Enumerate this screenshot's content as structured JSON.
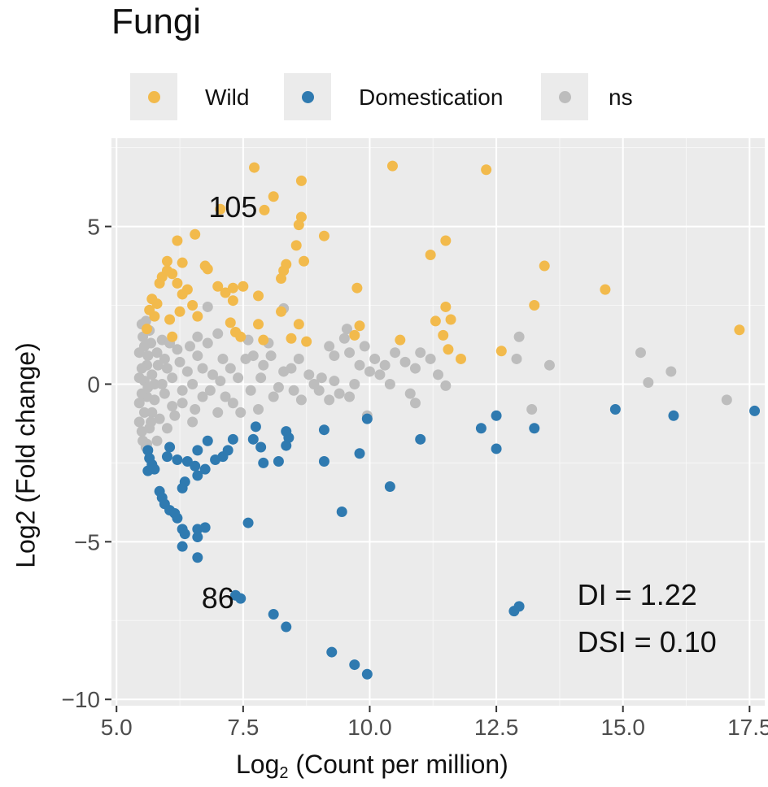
{
  "chart_data": {
    "type": "scatter",
    "title": "Fungi",
    "xlabel_prefix": "Log",
    "xlabel_sub": "2",
    "xlabel_suffix": " (Count per million)",
    "ylabel": "Log2 (Fold change)",
    "xlim": [
      4.9,
      17.8
    ],
    "ylim": [
      -10.2,
      7.8
    ],
    "x_ticks": [
      5.0,
      7.5,
      10.0,
      12.5,
      15.0,
      17.5
    ],
    "x_tick_labels": [
      "5.0",
      "7.5",
      "10.0",
      "12.5",
      "15.0",
      "17.5"
    ],
    "y_ticks": [
      -10,
      -5,
      0,
      5
    ],
    "y_tick_labels": [
      "−10",
      "−5",
      "0",
      "5"
    ],
    "grid": true,
    "legend_position": "top",
    "legend": [
      {
        "label": "Wild",
        "color": "#f2ba4c"
      },
      {
        "label": "Domestication",
        "color": "#2f7ab0"
      },
      {
        "label": "ns",
        "color": "#bdbdbd"
      }
    ],
    "annotations": [
      {
        "text": "105",
        "x": 7.3,
        "y": 5.3
      },
      {
        "text": "86",
        "x": 7.0,
        "y": -7.1
      },
      {
        "text": "DI = 1.22",
        "x": 14.1,
        "y": -7.0
      },
      {
        "text": "DSI = 0.10",
        "x": 14.1,
        "y": -8.5
      }
    ],
    "series": [
      {
        "name": "Wild",
        "color": "#f2ba4c",
        "points": [
          [
            7.72,
            6.87
          ],
          [
            8.65,
            6.45
          ],
          [
            10.45,
            6.92
          ],
          [
            12.3,
            6.8
          ],
          [
            8.1,
            5.95
          ],
          [
            7.92,
            5.52
          ],
          [
            7.05,
            5.55
          ],
          [
            8.6,
            5.05
          ],
          [
            8.65,
            5.3
          ],
          [
            6.55,
            4.75
          ],
          [
            6.2,
            4.55
          ],
          [
            8.55,
            4.4
          ],
          [
            9.1,
            4.7
          ],
          [
            11.5,
            4.55
          ],
          [
            11.2,
            4.1
          ],
          [
            6.0,
            3.9
          ],
          [
            6.3,
            3.85
          ],
          [
            6.75,
            3.75
          ],
          [
            8.35,
            3.8
          ],
          [
            8.7,
            3.9
          ],
          [
            13.45,
            3.75
          ],
          [
            6.0,
            3.6
          ],
          [
            6.1,
            3.5
          ],
          [
            6.8,
            3.65
          ],
          [
            8.3,
            3.6
          ],
          [
            5.85,
            3.2
          ],
          [
            6.2,
            3.2
          ],
          [
            7.3,
            3.05
          ],
          [
            7.15,
            2.9
          ],
          [
            7.8,
            2.8
          ],
          [
            8.25,
            3.35
          ],
          [
            9.75,
            3.05
          ],
          [
            5.7,
            2.7
          ],
          [
            6.3,
            2.85
          ],
          [
            7.3,
            2.65
          ],
          [
            8.25,
            2.3
          ],
          [
            11.5,
            2.45
          ],
          [
            13.25,
            2.5
          ],
          [
            14.65,
            3.0
          ],
          [
            5.65,
            2.35
          ],
          [
            5.75,
            2.15
          ],
          [
            6.6,
            2.15
          ],
          [
            7.25,
            1.95
          ],
          [
            7.8,
            1.9
          ],
          [
            8.6,
            1.9
          ],
          [
            11.3,
            2.0
          ],
          [
            11.6,
            2.05
          ],
          [
            5.6,
            1.75
          ],
          [
            7.35,
            1.65
          ],
          [
            9.8,
            1.85
          ],
          [
            9.7,
            1.55
          ],
          [
            11.45,
            1.55
          ],
          [
            7.45,
            1.5
          ],
          [
            8.45,
            1.45
          ],
          [
            17.3,
            1.72
          ],
          [
            6.1,
            1.5
          ],
          [
            7.9,
            1.4
          ],
          [
            8.75,
            1.35
          ],
          [
            10.6,
            1.4
          ],
          [
            11.55,
            1.1
          ],
          [
            12.6,
            1.05
          ],
          [
            11.8,
            0.8
          ],
          [
            6.4,
            3.0
          ],
          [
            5.9,
            3.4
          ],
          [
            6.5,
            2.5
          ],
          [
            6.05,
            2.05
          ],
          [
            5.8,
            2.55
          ],
          [
            7.0,
            3.1
          ],
          [
            6.25,
            2.3
          ],
          [
            7.5,
            3.1
          ]
        ]
      },
      {
        "name": "Domestication",
        "color": "#2f7ab0",
        "points": [
          [
            5.62,
            -2.1
          ],
          [
            5.65,
            -2.35
          ],
          [
            5.7,
            -2.55
          ],
          [
            5.75,
            -2.7
          ],
          [
            5.62,
            -2.75
          ],
          [
            6.0,
            -2.3
          ],
          [
            6.05,
            -2.0
          ],
          [
            6.2,
            -2.4
          ],
          [
            6.4,
            -2.45
          ],
          [
            6.55,
            -2.6
          ],
          [
            6.6,
            -2.9
          ],
          [
            6.75,
            -2.7
          ],
          [
            6.35,
            -3.1
          ],
          [
            6.3,
            -3.3
          ],
          [
            6.6,
            -2.1
          ],
          [
            6.95,
            -2.4
          ],
          [
            7.1,
            -2.3
          ],
          [
            7.3,
            -1.75
          ],
          [
            7.75,
            -1.35
          ],
          [
            7.85,
            -2.0
          ],
          [
            7.9,
            -2.5
          ],
          [
            8.2,
            -2.45
          ],
          [
            8.35,
            -1.95
          ],
          [
            8.35,
            -1.5
          ],
          [
            9.1,
            -1.45
          ],
          [
            9.1,
            -2.45
          ],
          [
            9.8,
            -2.2
          ],
          [
            9.95,
            -1.1
          ],
          [
            10.4,
            -3.25
          ],
          [
            11.0,
            -1.75
          ],
          [
            12.2,
            -1.4
          ],
          [
            12.5,
            -1.0
          ],
          [
            12.5,
            -2.05
          ],
          [
            13.25,
            -1.4
          ],
          [
            14.85,
            -0.8
          ],
          [
            16.0,
            -1.0
          ],
          [
            17.6,
            -0.85
          ],
          [
            5.85,
            -3.4
          ],
          [
            5.9,
            -3.6
          ],
          [
            5.95,
            -3.8
          ],
          [
            6.05,
            -4.0
          ],
          [
            6.15,
            -4.1
          ],
          [
            6.2,
            -4.25
          ],
          [
            6.3,
            -4.6
          ],
          [
            6.35,
            -4.75
          ],
          [
            6.3,
            -5.15
          ],
          [
            6.6,
            -4.6
          ],
          [
            6.6,
            -4.85
          ],
          [
            6.75,
            -4.55
          ],
          [
            6.6,
            -5.5
          ],
          [
            7.6,
            -4.4
          ],
          [
            9.45,
            -4.05
          ],
          [
            7.35,
            -6.7
          ],
          [
            7.45,
            -6.8
          ],
          [
            8.1,
            -7.3
          ],
          [
            8.35,
            -7.7
          ],
          [
            9.25,
            -8.5
          ],
          [
            9.7,
            -8.9
          ],
          [
            9.95,
            -9.2
          ],
          [
            12.85,
            -7.2
          ],
          [
            12.95,
            -7.05
          ],
          [
            7.7,
            -1.75
          ],
          [
            8.4,
            -1.7
          ],
          [
            7.2,
            -2.1
          ],
          [
            6.8,
            -1.8
          ]
        ]
      },
      {
        "name": "ns",
        "color": "#bdbdbd",
        "points": [
          [
            6.8,
            2.45
          ],
          [
            8.3,
            2.4
          ],
          [
            9.55,
            1.75
          ],
          [
            9.5,
            1.45
          ],
          [
            7.0,
            1.6
          ],
          [
            7.6,
            1.4
          ],
          [
            8.0,
            1.3
          ],
          [
            6.6,
            1.5
          ],
          [
            9.2,
            1.2
          ],
          [
            9.3,
            0.9
          ],
          [
            9.6,
            1.0
          ],
          [
            9.9,
            1.2
          ],
          [
            10.1,
            0.8
          ],
          [
            10.5,
            1.0
          ],
          [
            10.7,
            0.7
          ],
          [
            10.9,
            0.5
          ],
          [
            11.2,
            0.8
          ],
          [
            11.0,
            1.0
          ],
          [
            10.3,
            0.6
          ],
          [
            10.2,
            0.3
          ],
          [
            10.4,
            0.0
          ],
          [
            10.8,
            -0.3
          ],
          [
            11.35,
            0.3
          ],
          [
            11.5,
            -0.05
          ],
          [
            12.95,
            1.5
          ],
          [
            12.9,
            0.8
          ],
          [
            13.55,
            0.6
          ],
          [
            13.2,
            -0.8
          ],
          [
            15.35,
            1.0
          ],
          [
            15.5,
            0.05
          ],
          [
            15.95,
            0.4
          ],
          [
            17.05,
            -0.5
          ],
          [
            9.95,
            -1.0
          ],
          [
            10.9,
            -0.6
          ],
          [
            9.7,
            0.0
          ],
          [
            9.8,
            0.6
          ],
          [
            9.4,
            -0.3
          ],
          [
            9.2,
            -0.5
          ],
          [
            9.0,
            -0.2
          ],
          [
            8.8,
            0.3
          ],
          [
            8.6,
            0.8
          ],
          [
            8.5,
            -0.2
          ],
          [
            8.3,
            0.4
          ],
          [
            8.1,
            -0.4
          ],
          [
            7.9,
            0.6
          ],
          [
            7.7,
            0.9
          ],
          [
            7.8,
            -0.8
          ],
          [
            7.4,
            0.2
          ],
          [
            7.3,
            -0.6
          ],
          [
            7.1,
            0.8
          ],
          [
            7.0,
            -0.9
          ],
          [
            6.9,
            0.3
          ],
          [
            6.7,
            -0.4
          ],
          [
            6.6,
            0.9
          ],
          [
            6.5,
            -1.2
          ],
          [
            6.4,
            0.4
          ],
          [
            6.3,
            -0.2
          ],
          [
            6.2,
            1.1
          ],
          [
            6.1,
            -0.7
          ],
          [
            6.0,
            0.5
          ],
          [
            6.0,
            -1.4
          ],
          [
            5.9,
            1.4
          ],
          [
            5.9,
            0.0
          ],
          [
            5.8,
            -1.8
          ],
          [
            5.8,
            1.0
          ],
          [
            5.7,
            0.3
          ],
          [
            5.7,
            -0.9
          ],
          [
            5.65,
            1.7
          ],
          [
            5.65,
            -1.4
          ],
          [
            5.6,
            0.6
          ],
          [
            5.6,
            -0.4
          ],
          [
            5.6,
            -1.9
          ],
          [
            5.55,
            1.2
          ],
          [
            5.55,
            0.1
          ],
          [
            5.55,
            -0.9
          ],
          [
            5.5,
            1.9
          ],
          [
            5.5,
            0.5
          ],
          [
            5.5,
            -0.3
          ],
          [
            5.5,
            -1.5
          ],
          [
            5.45,
            1.0
          ],
          [
            5.45,
            -0.6
          ],
          [
            5.45,
            0.2
          ],
          [
            5.45,
            -1.2
          ],
          [
            5.52,
            1.5
          ],
          [
            5.52,
            -1.8
          ],
          [
            5.58,
            2.0
          ],
          [
            5.58,
            -2.0
          ],
          [
            5.62,
            0.9
          ],
          [
            5.62,
            -0.1
          ],
          [
            5.68,
            1.3
          ],
          [
            5.68,
            -1.2
          ],
          [
            5.75,
            0.0
          ],
          [
            5.75,
            -0.5
          ],
          [
            5.82,
            0.6
          ],
          [
            5.85,
            -1.1
          ],
          [
            5.95,
            0.8
          ],
          [
            5.95,
            -0.3
          ],
          [
            6.05,
            1.3
          ],
          [
            6.1,
            0.2
          ],
          [
            6.15,
            -1.0
          ],
          [
            6.25,
            0.7
          ],
          [
            6.3,
            -0.6
          ],
          [
            6.45,
            1.2
          ],
          [
            6.5,
            0.0
          ],
          [
            6.55,
            -0.8
          ],
          [
            6.7,
            0.5
          ],
          [
            6.8,
            1.3
          ],
          [
            6.85,
            -0.2
          ],
          [
            7.05,
            0.1
          ],
          [
            7.15,
            -0.4
          ],
          [
            7.25,
            0.5
          ],
          [
            7.45,
            -0.9
          ],
          [
            7.55,
            0.8
          ],
          [
            7.65,
            -0.2
          ],
          [
            7.85,
            0.2
          ],
          [
            8.05,
            0.9
          ],
          [
            8.2,
            -0.1
          ],
          [
            8.45,
            0.5
          ],
          [
            8.65,
            -0.5
          ],
          [
            8.9,
            0.0
          ],
          [
            9.05,
            0.2
          ],
          [
            9.3,
            0.1
          ],
          [
            9.6,
            -0.4
          ],
          [
            10.0,
            0.4
          ]
        ]
      }
    ]
  }
}
